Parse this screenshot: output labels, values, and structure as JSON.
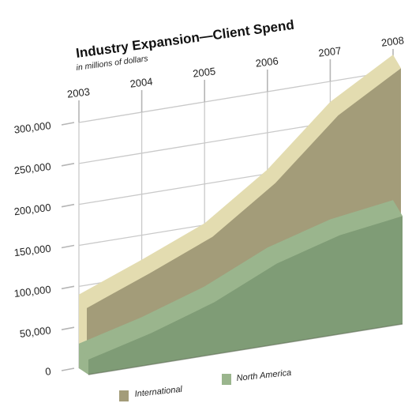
{
  "chart_data": {
    "type": "area",
    "title": "Industry Expansion—Client Spend",
    "subtitle": "in millions of dollars",
    "x": [
      "2003",
      "2004",
      "2005",
      "2006",
      "2007",
      "2008"
    ],
    "ylim": [
      0,
      300000
    ],
    "yticks": [
      0,
      50000,
      100000,
      150000,
      200000,
      250000,
      300000
    ],
    "ytick_labels": [
      "0",
      "50,000",
      "100,000",
      "150,000",
      "200,000",
      "250,000",
      "300,000"
    ],
    "series": [
      {
        "name": "International",
        "values": [
          90000,
          120000,
          152000,
          205000,
          275000,
          320000
        ],
        "color": "#a39c79",
        "top_color": "#e3dcb0"
      },
      {
        "name": "North America",
        "values": [
          30000,
          50000,
          75000,
          110000,
          132000,
          143000
        ],
        "color": "#7f9c76",
        "top_color": "#9ab58d"
      }
    ],
    "stacked": false,
    "grid": true,
    "legend_position": "bottom",
    "style": "3d-perspective"
  }
}
